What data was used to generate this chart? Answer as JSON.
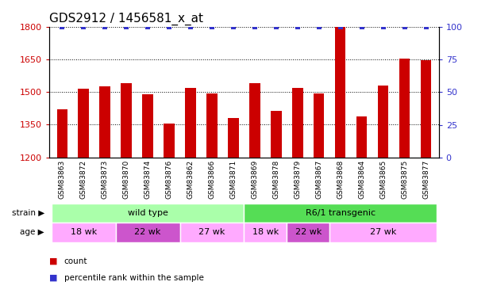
{
  "title": "GDS2912 / 1456581_x_at",
  "categories": [
    "GSM83863",
    "GSM83872",
    "GSM83873",
    "GSM83870",
    "GSM83874",
    "GSM83876",
    "GSM83862",
    "GSM83866",
    "GSM83871",
    "GSM83869",
    "GSM83878",
    "GSM83879",
    "GSM83867",
    "GSM83868",
    "GSM83864",
    "GSM83865",
    "GSM83875",
    "GSM83877"
  ],
  "bar_values": [
    1420,
    1515,
    1525,
    1540,
    1490,
    1355,
    1520,
    1495,
    1380,
    1540,
    1415,
    1520,
    1495,
    1800,
    1390,
    1530,
    1655,
    1645
  ],
  "percentile_values": [
    100,
    100,
    100,
    100,
    100,
    100,
    100,
    100,
    100,
    100,
    100,
    100,
    100,
    100,
    100,
    100,
    100,
    100
  ],
  "bar_color": "#cc0000",
  "percentile_color": "#3333cc",
  "ylim_left": [
    1200,
    1800
  ],
  "ylim_right": [
    0,
    100
  ],
  "yticks_left": [
    1200,
    1350,
    1500,
    1650,
    1800
  ],
  "yticks_right": [
    0,
    25,
    50,
    75,
    100
  ],
  "strain_labels": [
    {
      "label": "wild type",
      "start": 0,
      "end": 9,
      "color": "#aaffaa"
    },
    {
      "label": "R6/1 transgenic",
      "start": 9,
      "end": 18,
      "color": "#55dd55"
    }
  ],
  "age_groups": [
    {
      "label": "18 wk",
      "start": 0,
      "end": 3,
      "color": "#ffaaff"
    },
    {
      "label": "22 wk",
      "start": 3,
      "end": 6,
      "color": "#cc55cc"
    },
    {
      "label": "27 wk",
      "start": 6,
      "end": 9,
      "color": "#ffaaff"
    },
    {
      "label": "18 wk",
      "start": 9,
      "end": 11,
      "color": "#ffaaff"
    },
    {
      "label": "22 wk",
      "start": 11,
      "end": 13,
      "color": "#cc55cc"
    },
    {
      "label": "27 wk",
      "start": 13,
      "end": 18,
      "color": "#ffaaff"
    }
  ],
  "legend_items": [
    {
      "label": "count",
      "color": "#cc0000"
    },
    {
      "label": "percentile rank within the sample",
      "color": "#3333cc"
    }
  ],
  "background_color": "#ffffff",
  "xtick_bg_color": "#bbbbbb",
  "title_fontsize": 11,
  "axis_label_color_left": "#cc0000",
  "axis_label_color_right": "#3333cc"
}
